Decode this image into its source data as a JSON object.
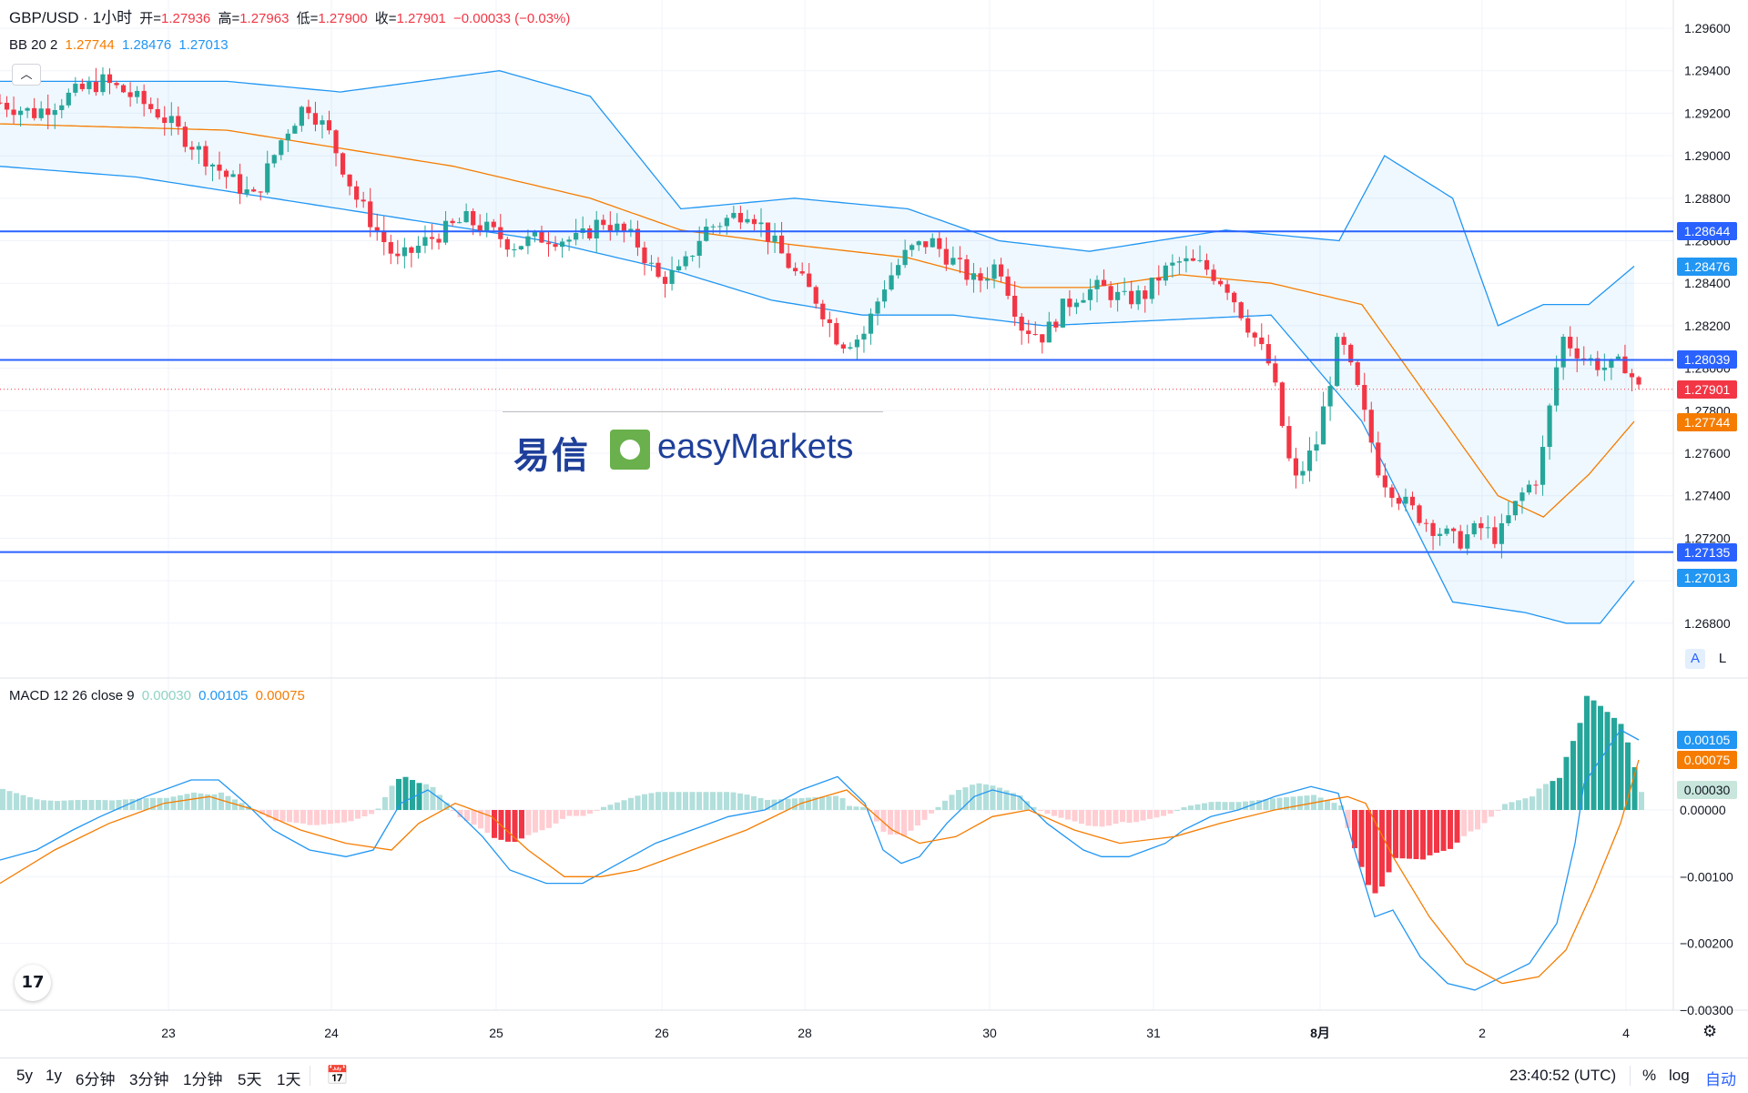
{
  "header": {
    "symbol": "GBP/USD · 1小时",
    "open_label": "开=",
    "open": "1.27936",
    "high_label": "高=",
    "high": "1.27963",
    "low_label": "低=",
    "low": "1.27900",
    "close_label": "收=",
    "close": "1.27901",
    "change": "−0.00033 (−0.03%)"
  },
  "bb_legend": {
    "name": "BB 20 2",
    "basis": "1.27744",
    "upper": "1.28476",
    "lower": "1.27013"
  },
  "macd_legend": {
    "name": "MACD 12 26 close 9",
    "hist": "0.00030",
    "macd": "0.00105",
    "signal": "0.00075"
  },
  "watermark": {
    "cn": "易信",
    "brand": "easyMarkets"
  },
  "price_axis": {
    "ticks": [
      "1.29600",
      "1.29400",
      "1.29200",
      "1.29000",
      "1.28800",
      "1.28600",
      "1.28400",
      "1.28200",
      "1.28000",
      "1.27800",
      "1.27600",
      "1.27400",
      "1.27200",
      "1.27000",
      "1.26800"
    ],
    "tick_values": [
      1.296,
      1.294,
      1.292,
      1.29,
      1.288,
      1.286,
      1.284,
      1.282,
      1.28,
      1.278,
      1.276,
      1.274,
      1.272,
      1.27,
      1.268
    ],
    "tags": [
      {
        "text": "1.28644",
        "value": 1.28644,
        "color": "#2962ff"
      },
      {
        "text": "1.28476",
        "value": 1.28476,
        "color": "#2196f3"
      },
      {
        "text": "1.28039",
        "value": 1.28039,
        "color": "#2962ff"
      },
      {
        "text": "1.27901",
        "value": 1.27901,
        "color": "#f23645"
      },
      {
        "text": "1.27744",
        "value": 1.27744,
        "color": "#f57c00"
      },
      {
        "text": "1.27135",
        "value": 1.27135,
        "color": "#2962ff"
      },
      {
        "text": "1.27013",
        "value": 1.27013,
        "color": "#2196f3"
      }
    ],
    "scale_buttons": [
      "A",
      "L"
    ]
  },
  "macd_axis": {
    "ticks": [
      "0.00000",
      "−0.00100",
      "−0.00200",
      "−0.00300"
    ],
    "tick_values": [
      0,
      -0.001,
      -0.002,
      -0.003
    ],
    "tags": [
      {
        "text": "0.00105",
        "value": 0.00105,
        "color": "#2196f3",
        "text_color": "#ffffff"
      },
      {
        "text": "0.00075",
        "value": 0.00075,
        "color": "#f57c00",
        "text_color": "#ffffff"
      },
      {
        "text": "0.00030",
        "value": 0.0003,
        "color": "#c8e6dc",
        "text_color": "#131722"
      }
    ]
  },
  "horizontal_lines": [
    1.28644,
    1.28039,
    1.27135
  ],
  "time_axis": [
    "23",
    "24",
    "25",
    "26",
    "28",
    "30",
    "31",
    "8月",
    "2",
    "4"
  ],
  "bottom_bar": {
    "ranges": [
      "5y",
      "1y",
      "6分钟",
      "3分钟",
      "1分钟",
      "5天",
      "1天"
    ],
    "time": "23:40:52 (UTC)",
    "options": [
      "%",
      "log",
      "自动"
    ]
  },
  "colors": {
    "up": "#26a69a",
    "down": "#f23645",
    "bb_band": "#2196f3",
    "bb_basis": "#f57c00",
    "hline": "#2962ff"
  },
  "chart_data": {
    "type": "candlestick",
    "symbol": "GBP/USD",
    "interval": "1小时",
    "price_range": [
      1.2662,
      1.297
    ],
    "candles_close_path": [
      [
        0,
        1.2925
      ],
      [
        15,
        1.292
      ],
      [
        30,
        1.2928
      ],
      [
        45,
        1.2935
      ],
      [
        55,
        1.293
      ],
      [
        70,
        1.292
      ],
      [
        85,
        1.2905
      ],
      [
        100,
        1.289
      ],
      [
        112,
        1.288
      ],
      [
        125,
        1.291
      ],
      [
        135,
        1.2925
      ],
      [
        145,
        1.291
      ],
      [
        157,
        1.288
      ],
      [
        175,
        1.285
      ],
      [
        188,
        1.286
      ],
      [
        205,
        1.287
      ],
      [
        215,
        1.2865
      ],
      [
        226,
        1.2858
      ],
      [
        240,
        1.2862
      ],
      [
        255,
        1.286
      ],
      [
        265,
        1.287
      ],
      [
        280,
        1.286
      ],
      [
        290,
        1.2842
      ],
      [
        300,
        1.2845
      ],
      [
        310,
        1.2865
      ],
      [
        320,
        1.287
      ],
      [
        330,
        1.2875
      ],
      [
        340,
        1.286
      ],
      [
        350,
        1.2845
      ],
      [
        360,
        1.2832
      ],
      [
        370,
        1.2812
      ],
      [
        380,
        1.2815
      ],
      [
        390,
        1.284
      ],
      [
        400,
        1.2855
      ],
      [
        410,
        1.286
      ],
      [
        420,
        1.285
      ],
      [
        430,
        1.284
      ],
      [
        440,
        1.285
      ],
      [
        450,
        1.282
      ],
      [
        460,
        1.2815
      ],
      [
        468,
        1.2828
      ],
      [
        475,
        1.2835
      ],
      [
        485,
        1.2838
      ],
      [
        495,
        1.2832
      ],
      [
        505,
        1.2835
      ],
      [
        512,
        1.2845
      ],
      [
        520,
        1.285
      ],
      [
        530,
        1.2848
      ],
      [
        540,
        1.284
      ],
      [
        550,
        1.282
      ],
      [
        560,
        1.28
      ],
      [
        570,
        1.2745
      ],
      [
        580,
        1.2765
      ],
      [
        590,
        1.2815
      ],
      [
        598,
        1.279
      ],
      [
        608,
        1.275
      ],
      [
        620,
        1.2735
      ],
      [
        632,
        1.2725
      ],
      [
        642,
        1.2718
      ],
      [
        652,
        1.2725
      ],
      [
        660,
        1.272
      ],
      [
        670,
        1.274
      ],
      [
        678,
        1.275
      ],
      [
        688,
        1.2815
      ],
      [
        698,
        1.2805
      ],
      [
        708,
        1.28
      ],
      [
        716,
        1.2802
      ],
      [
        722,
        1.279
      ]
    ],
    "bb_upper_path": [
      [
        0,
        1.2935
      ],
      [
        60,
        1.2935
      ],
      [
        100,
        1.2935
      ],
      [
        150,
        1.293
      ],
      [
        220,
        1.294
      ],
      [
        260,
        1.2928
      ],
      [
        300,
        1.2875
      ],
      [
        350,
        1.288
      ],
      [
        400,
        1.2875
      ],
      [
        440,
        1.286
      ],
      [
        480,
        1.2855
      ],
      [
        540,
        1.2865
      ],
      [
        590,
        1.286
      ],
      [
        610,
        1.29
      ],
      [
        640,
        1.288
      ],
      [
        660,
        1.282
      ],
      [
        680,
        1.283
      ],
      [
        700,
        1.283
      ],
      [
        720,
        1.2848
      ]
    ],
    "bb_basis_path": [
      [
        0,
        1.2915
      ],
      [
        100,
        1.2912
      ],
      [
        200,
        1.2895
      ],
      [
        260,
        1.288
      ],
      [
        300,
        1.2865
      ],
      [
        350,
        1.2858
      ],
      [
        400,
        1.2852
      ],
      [
        450,
        1.2838
      ],
      [
        480,
        1.2838
      ],
      [
        520,
        1.2844
      ],
      [
        560,
        1.284
      ],
      [
        600,
        1.283
      ],
      [
        640,
        1.277
      ],
      [
        660,
        1.274
      ],
      [
        680,
        1.273
      ],
      [
        700,
        1.275
      ],
      [
        720,
        1.2775
      ]
    ],
    "bb_lower_path": [
      [
        0,
        1.2895
      ],
      [
        60,
        1.289
      ],
      [
        120,
        1.288
      ],
      [
        180,
        1.287
      ],
      [
        240,
        1.286
      ],
      [
        300,
        1.2845
      ],
      [
        340,
        1.2832
      ],
      [
        380,
        1.2825
      ],
      [
        420,
        1.2825
      ],
      [
        460,
        1.282
      ],
      [
        500,
        1.2822
      ],
      [
        560,
        1.2825
      ],
      [
        600,
        1.2775
      ],
      [
        640,
        1.269
      ],
      [
        672,
        1.2685
      ],
      [
        690,
        1.268
      ],
      [
        705,
        1.268
      ],
      [
        720,
        1.27
      ]
    ],
    "macd": {
      "hist": "0.00030",
      "macd": "0.00105",
      "signal": "0.00075",
      "range": [
        -0.0032,
        0.0015
      ]
    }
  }
}
